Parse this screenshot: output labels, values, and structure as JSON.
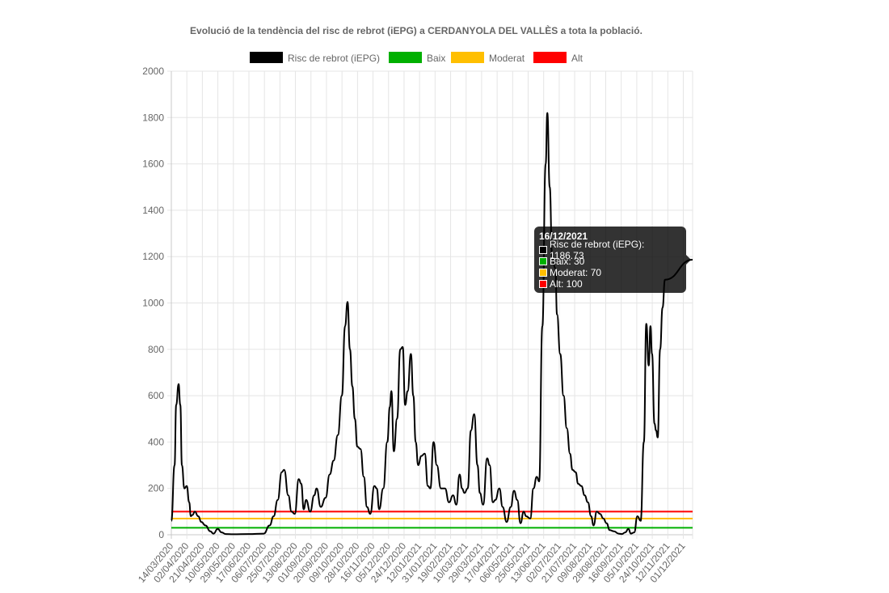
{
  "chart_data": {
    "type": "line",
    "title": "Evolució de la tendència del risc de rebrot (iEPG) a CERDANYOLA DEL VALLÈS a tota la població.",
    "xlabel": "",
    "ylabel": "",
    "ylim": [
      0,
      2000
    ],
    "y_ticks": [
      "0",
      "200",
      "400",
      "600",
      "800",
      "1000",
      "1200",
      "1400",
      "1600",
      "1800",
      "2000"
    ],
    "grid": true,
    "legend_position": "top",
    "x_start": "14/03/2020",
    "x_end": "16/12/2021",
    "x_tick_labels": [
      "14/03/2020",
      "02/04/2020",
      "21/04/2020",
      "10/05/2020",
      "29/05/2020",
      "17/06/2020",
      "06/07/2020",
      "25/07/2020",
      "13/08/2020",
      "01/09/2020",
      "20/09/2020",
      "09/10/2020",
      "28/10/2020",
      "16/11/2020",
      "05/12/2020",
      "24/12/2020",
      "12/01/2021",
      "31/01/2021",
      "19/02/2021",
      "10/03/2021",
      "29/03/2021",
      "17/04/2021",
      "06/05/2021",
      "25/05/2021",
      "13/06/2021",
      "02/07/2021",
      "21/07/2021",
      "09/08/2021",
      "28/08/2021",
      "16/09/2021",
      "05/10/2021",
      "24/10/2021",
      "12/11/2021",
      "01/12/2021"
    ],
    "series": [
      {
        "name": "Risc de rebrot (iEPG)",
        "color": "#000000",
        "points": [
          [
            "14/03/2020",
            60
          ],
          [
            "18/03/2020",
            300
          ],
          [
            "20/03/2020",
            560
          ],
          [
            "23/03/2020",
            650
          ],
          [
            "25/03/2020",
            560
          ],
          [
            "27/03/2020",
            300
          ],
          [
            "30/03/2020",
            200
          ],
          [
            "02/04/2020",
            210
          ],
          [
            "05/04/2020",
            140
          ],
          [
            "07/04/2020",
            80
          ],
          [
            "09/04/2020",
            85
          ],
          [
            "12/04/2020",
            100
          ],
          [
            "16/04/2020",
            80
          ],
          [
            "20/04/2020",
            55
          ],
          [
            "25/04/2020",
            40
          ],
          [
            "01/05/2020",
            15
          ],
          [
            "05/05/2020",
            5
          ],
          [
            "10/05/2020",
            25
          ],
          [
            "15/05/2020",
            10
          ],
          [
            "20/05/2020",
            3
          ],
          [
            "29/05/2020",
            2
          ],
          [
            "17/06/2020",
            3
          ],
          [
            "06/07/2020",
            5
          ],
          [
            "13/07/2020",
            40
          ],
          [
            "18/07/2020",
            80
          ],
          [
            "23/07/2020",
            150
          ],
          [
            "28/07/2020",
            270
          ],
          [
            "31/07/2020",
            280
          ],
          [
            "05/08/2020",
            170
          ],
          [
            "09/08/2020",
            100
          ],
          [
            "13/08/2020",
            90
          ],
          [
            "18/08/2020",
            240
          ],
          [
            "21/08/2020",
            220
          ],
          [
            "24/08/2020",
            110
          ],
          [
            "27/08/2020",
            150
          ],
          [
            "01/09/2020",
            100
          ],
          [
            "06/09/2020",
            170
          ],
          [
            "09/09/2020",
            200
          ],
          [
            "14/09/2020",
            120
          ],
          [
            "20/09/2020",
            160
          ],
          [
            "25/09/2020",
            260
          ],
          [
            "30/09/2020",
            320
          ],
          [
            "05/10/2020",
            430
          ],
          [
            "10/10/2020",
            600
          ],
          [
            "14/10/2020",
            900
          ],
          [
            "17/10/2020",
            1005
          ],
          [
            "20/10/2020",
            800
          ],
          [
            "23/10/2020",
            640
          ],
          [
            "26/10/2020",
            500
          ],
          [
            "29/10/2020",
            380
          ],
          [
            "02/11/2020",
            370
          ],
          [
            "06/11/2020",
            250
          ],
          [
            "10/11/2020",
            120
          ],
          [
            "14/11/2020",
            90
          ],
          [
            "19/11/2020",
            210
          ],
          [
            "22/11/2020",
            200
          ],
          [
            "25/11/2020",
            110
          ],
          [
            "30/11/2020",
            200
          ],
          [
            "05/12/2020",
            400
          ],
          [
            "08/12/2020",
            550
          ],
          [
            "10/12/2020",
            620
          ],
          [
            "13/12/2020",
            360
          ],
          [
            "17/12/2020",
            500
          ],
          [
            "21/12/2020",
            800
          ],
          [
            "24/12/2020",
            810
          ],
          [
            "27/12/2020",
            560
          ],
          [
            "30/12/2020",
            620
          ],
          [
            "03/01/2021",
            780
          ],
          [
            "06/01/2021",
            600
          ],
          [
            "09/01/2021",
            400
          ],
          [
            "12/01/2021",
            300
          ],
          [
            "16/01/2021",
            340
          ],
          [
            "20/01/2021",
            350
          ],
          [
            "24/01/2021",
            210
          ],
          [
            "27/01/2021",
            200
          ],
          [
            "31/01/2021",
            400
          ],
          [
            "04/02/2021",
            300
          ],
          [
            "09/02/2021",
            200
          ],
          [
            "14/02/2021",
            200
          ],
          [
            "19/02/2021",
            140
          ],
          [
            "24/02/2021",
            170
          ],
          [
            "28/02/2021",
            130
          ],
          [
            "04/03/2021",
            260
          ],
          [
            "07/03/2021",
            200
          ],
          [
            "10/03/2021",
            180
          ],
          [
            "14/03/2021",
            200
          ],
          [
            "18/03/2021",
            450
          ],
          [
            "22/03/2021",
            520
          ],
          [
            "26/03/2021",
            300
          ],
          [
            "29/03/2021",
            180
          ],
          [
            "02/04/2021",
            130
          ],
          [
            "07/04/2021",
            330
          ],
          [
            "10/04/2021",
            300
          ],
          [
            "14/04/2021",
            140
          ],
          [
            "17/04/2021",
            150
          ],
          [
            "22/04/2021",
            200
          ],
          [
            "26/04/2021",
            120
          ],
          [
            "01/05/2021",
            55
          ],
          [
            "06/05/2021",
            120
          ],
          [
            "10/05/2021",
            190
          ],
          [
            "14/05/2021",
            150
          ],
          [
            "18/05/2021",
            50
          ],
          [
            "22/05/2021",
            100
          ],
          [
            "25/05/2021",
            80
          ],
          [
            "30/05/2021",
            70
          ],
          [
            "03/06/2021",
            200
          ],
          [
            "07/06/2021",
            250
          ],
          [
            "10/06/2021",
            230
          ],
          [
            "14/06/2021",
            900
          ],
          [
            "18/06/2021",
            1600
          ],
          [
            "20/06/2021",
            1820
          ],
          [
            "23/06/2021",
            1500
          ],
          [
            "26/06/2021",
            1200
          ],
          [
            "30/06/2021",
            1150
          ],
          [
            "02/07/2021",
            950
          ],
          [
            "06/07/2021",
            780
          ],
          [
            "10/07/2021",
            600
          ],
          [
            "14/07/2021",
            460
          ],
          [
            "18/07/2021",
            350
          ],
          [
            "21/07/2021",
            280
          ],
          [
            "25/07/2021",
            270
          ],
          [
            "28/07/2021",
            220
          ],
          [
            "01/08/2021",
            210
          ],
          [
            "05/08/2021",
            170
          ],
          [
            "09/08/2021",
            140
          ],
          [
            "13/08/2021",
            80
          ],
          [
            "16/08/2021",
            40
          ],
          [
            "20/08/2021",
            100
          ],
          [
            "24/08/2021",
            90
          ],
          [
            "28/08/2021",
            70
          ],
          [
            "01/09/2021",
            50
          ],
          [
            "05/09/2021",
            20
          ],
          [
            "10/09/2021",
            15
          ],
          [
            "16/09/2021",
            5
          ],
          [
            "20/09/2021",
            3
          ],
          [
            "24/09/2021",
            10
          ],
          [
            "28/09/2021",
            25
          ],
          [
            "01/10/2021",
            5
          ],
          [
            "05/10/2021",
            10
          ],
          [
            "09/10/2021",
            80
          ],
          [
            "13/10/2021",
            60
          ],
          [
            "17/10/2021",
            400
          ],
          [
            "20/10/2021",
            910
          ],
          [
            "23/10/2021",
            730
          ],
          [
            "25/10/2021",
            900
          ],
          [
            "27/10/2021",
            780
          ],
          [
            "30/10/2021",
            480
          ],
          [
            "01/11/2021",
            450
          ],
          [
            "03/11/2021",
            420
          ],
          [
            "06/11/2021",
            800
          ],
          [
            "09/11/2021",
            980
          ],
          [
            "12/11/2021",
            1100
          ],
          [
            "16/12/2021",
            1186.73
          ]
        ]
      },
      {
        "name": "Baix",
        "color": "#00b000",
        "constant": 30
      },
      {
        "name": "Moderat",
        "color": "#ffbf00",
        "constant": 70
      },
      {
        "name": "Alt",
        "color": "#ff0000",
        "constant": 100
      }
    ]
  },
  "tooltip": {
    "title": "16/12/2021",
    "rows": [
      {
        "color": "#000000",
        "text": "Risc de rebrot (iEPG): 1186.73"
      },
      {
        "color": "#00b000",
        "text": "Baix: 30"
      },
      {
        "color": "#ffbf00",
        "text": "Moderat: 70"
      },
      {
        "color": "#ff0000",
        "text": "Alt: 100"
      }
    ]
  }
}
